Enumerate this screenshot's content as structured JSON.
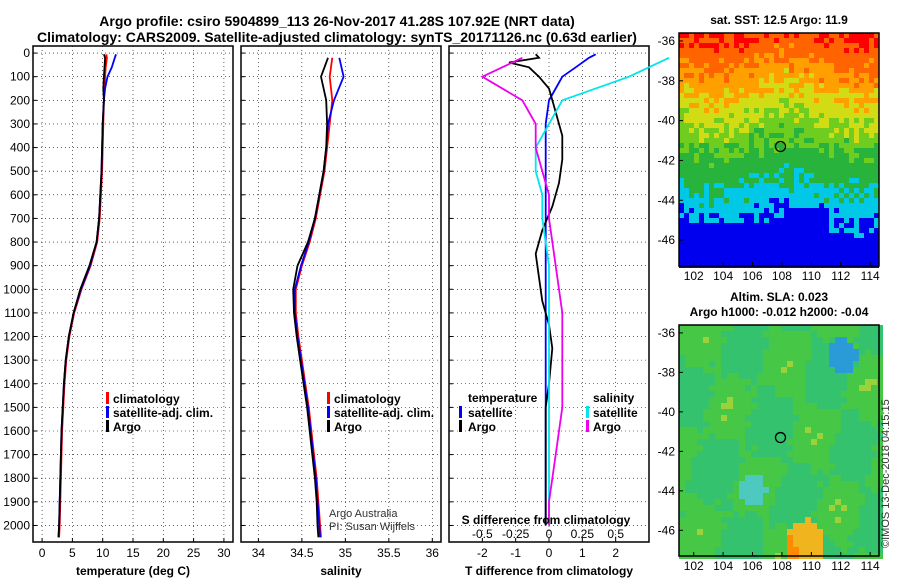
{
  "title": {
    "line1": "Argo profile: csiro 5904899_113 26-Nov-2017 41.28S 107.92E (NRT data)",
    "line2": "Climatology: CARS2009. Satellite-adjusted climatology: synTS_20171126.nc (0.63d earlier)"
  },
  "colors": {
    "climatology": "#ff0000",
    "satellite": "#0000ff",
    "argo": "#000000",
    "cyan": "#00e5ee",
    "magenta": "#ee00ee"
  },
  "chart_data": [
    {
      "type": "line",
      "name": "temperature",
      "xlabel": "temperature (deg C)",
      "xlim": [
        -1.5,
        31.5
      ],
      "xticks": [
        "0",
        "5",
        "10",
        "15",
        "20",
        "25",
        "30"
      ],
      "ylim": [
        2070,
        -30
      ],
      "yticks": [
        "0",
        "100",
        "200",
        "300",
        "400",
        "500",
        "600",
        "700",
        "800",
        "900",
        "1000",
        "1100",
        "1200",
        "1300",
        "1400",
        "1500",
        "1600",
        "1700",
        "1800",
        "1900",
        "2000"
      ],
      "legend": {
        "climatology": "climatology",
        "satellite": "satellite-adj. clim.",
        "argo": "Argo"
      },
      "series": [
        {
          "name": "climatology",
          "color": "#ff0000",
          "points": [
            [
              10.6,
              5
            ],
            [
              10.7,
              20
            ],
            [
              10.5,
              60
            ],
            [
              10.4,
              100
            ],
            [
              10.3,
              150
            ],
            [
              10.2,
              200
            ],
            [
              10.1,
              300
            ],
            [
              10.0,
              400
            ],
            [
              9.9,
              500
            ],
            [
              9.7,
              600
            ],
            [
              9.5,
              700
            ],
            [
              9.1,
              800
            ],
            [
              8.0,
              900
            ],
            [
              6.5,
              1000
            ],
            [
              5.3,
              1100
            ],
            [
              4.5,
              1200
            ],
            [
              4.0,
              1300
            ],
            [
              3.7,
              1400
            ],
            [
              3.5,
              1500
            ],
            [
              3.3,
              1600
            ],
            [
              3.2,
              1700
            ],
            [
              3.1,
              1800
            ],
            [
              3.0,
              1900
            ],
            [
              2.9,
              2000
            ],
            [
              2.8,
              2050
            ]
          ]
        },
        {
          "name": "satellite",
          "color": "#0000ff",
          "points": [
            [
              12.2,
              5
            ],
            [
              12.0,
              20
            ],
            [
              11.5,
              60
            ],
            [
              10.8,
              100
            ],
            [
              10.4,
              150
            ],
            [
              10.2,
              200
            ],
            [
              10.0,
              300
            ],
            [
              9.9,
              400
            ],
            [
              9.8,
              500
            ],
            [
              9.6,
              600
            ],
            [
              9.4,
              700
            ],
            [
              9.0,
              800
            ],
            [
              7.9,
              900
            ],
            [
              6.4,
              1000
            ],
            [
              5.2,
              1100
            ],
            [
              4.4,
              1200
            ],
            [
              3.9,
              1300
            ],
            [
              3.6,
              1400
            ],
            [
              3.4,
              1500
            ],
            [
              3.2,
              1600
            ],
            [
              3.1,
              1700
            ],
            [
              3.0,
              1800
            ],
            [
              2.9,
              1900
            ],
            [
              2.8,
              2000
            ],
            [
              2.7,
              2050
            ]
          ]
        },
        {
          "name": "argo",
          "color": "#000000",
          "points": [
            [
              10.2,
              5
            ],
            [
              10.4,
              20
            ],
            [
              10.3,
              60
            ],
            [
              10.2,
              100
            ],
            [
              10.1,
              150
            ],
            [
              10.2,
              200
            ],
            [
              10.0,
              300
            ],
            [
              9.9,
              400
            ],
            [
              9.8,
              500
            ],
            [
              9.6,
              600
            ],
            [
              9.4,
              700
            ],
            [
              9.0,
              800
            ],
            [
              7.8,
              900
            ],
            [
              6.3,
              1000
            ],
            [
              5.2,
              1100
            ],
            [
              4.4,
              1200
            ],
            [
              3.9,
              1300
            ],
            [
              3.6,
              1400
            ],
            [
              3.4,
              1500
            ],
            [
              3.2,
              1600
            ],
            [
              3.1,
              1700
            ],
            [
              3.0,
              1800
            ],
            [
              2.9,
              1900
            ],
            [
              2.8,
              2000
            ],
            [
              2.7,
              2050
            ]
          ]
        }
      ]
    },
    {
      "type": "line",
      "name": "salinity",
      "xlabel": "salinity",
      "xlim": [
        33.8,
        36.1
      ],
      "xticks": [
        "34",
        "34.5",
        "35",
        "35.5",
        "36"
      ],
      "ylim": [
        2070,
        -30
      ],
      "legend": {
        "climatology": "climatology",
        "satellite": "satellite-adj. clim.",
        "argo": "Argo"
      },
      "series": [
        {
          "name": "climatology",
          "color": "#ff0000",
          "points": [
            [
              34.85,
              20
            ],
            [
              34.82,
              100
            ],
            [
              34.85,
              200
            ],
            [
              34.82,
              300
            ],
            [
              34.79,
              400
            ],
            [
              34.76,
              500
            ],
            [
              34.71,
              600
            ],
            [
              34.66,
              700
            ],
            [
              34.59,
              800
            ],
            [
              34.5,
              900
            ],
            [
              34.43,
              1000
            ],
            [
              34.43,
              1100
            ],
            [
              34.46,
              1200
            ],
            [
              34.5,
              1300
            ],
            [
              34.54,
              1400
            ],
            [
              34.58,
              1500
            ],
            [
              34.61,
              1600
            ],
            [
              34.64,
              1700
            ],
            [
              34.67,
              1800
            ],
            [
              34.69,
              1900
            ],
            [
              34.71,
              2000
            ],
            [
              34.72,
              2050
            ]
          ]
        },
        {
          "name": "satellite",
          "color": "#0000ff",
          "points": [
            [
              34.93,
              20
            ],
            [
              34.98,
              100
            ],
            [
              34.87,
              200
            ],
            [
              34.8,
              300
            ],
            [
              34.78,
              400
            ],
            [
              34.75,
              500
            ],
            [
              34.7,
              600
            ],
            [
              34.65,
              700
            ],
            [
              34.58,
              800
            ],
            [
              34.49,
              900
            ],
            [
              34.42,
              1000
            ],
            [
              34.42,
              1100
            ],
            [
              34.45,
              1200
            ],
            [
              34.49,
              1300
            ],
            [
              34.53,
              1400
            ],
            [
              34.57,
              1500
            ],
            [
              34.6,
              1600
            ],
            [
              34.63,
              1700
            ],
            [
              34.66,
              1800
            ],
            [
              34.68,
              1900
            ],
            [
              34.7,
              2000
            ],
            [
              34.71,
              2050
            ]
          ]
        },
        {
          "name": "argo",
          "color": "#000000",
          "points": [
            [
              34.8,
              20
            ],
            [
              34.72,
              100
            ],
            [
              34.78,
              200
            ],
            [
              34.79,
              300
            ],
            [
              34.78,
              400
            ],
            [
              34.75,
              500
            ],
            [
              34.7,
              600
            ],
            [
              34.65,
              700
            ],
            [
              34.57,
              800
            ],
            [
              34.45,
              900
            ],
            [
              34.4,
              1000
            ],
            [
              34.41,
              1100
            ],
            [
              34.44,
              1200
            ],
            [
              34.48,
              1300
            ],
            [
              34.52,
              1400
            ],
            [
              34.56,
              1500
            ],
            [
              34.59,
              1600
            ],
            [
              34.62,
              1700
            ],
            [
              34.65,
              1800
            ],
            [
              34.67,
              1900
            ],
            [
              34.68,
              2000
            ],
            [
              34.69,
              2050
            ]
          ]
        }
      ],
      "credit": [
        "Argo Australia",
        "PI: Susan Wijffels"
      ]
    },
    {
      "type": "line",
      "name": "difference",
      "xlabel": "T difference from climatology",
      "xlabel_top": "S difference from climatology",
      "xlim": [
        -3,
        3
      ],
      "xticks": [
        "-2",
        "-1",
        "0",
        "1",
        "2"
      ],
      "xticks_s": [
        "-0.5",
        "-0.25",
        "0",
        "0.25",
        "0.5"
      ],
      "ylim": [
        2070,
        -30
      ],
      "legend": {
        "temperature": "temperature",
        "salinity": "salinity",
        "satellite": "satellite",
        "argo": "Argo"
      },
      "series": [
        {
          "name": "T satellite",
          "color": "#0000ff",
          "points": [
            [
              1.4,
              5
            ],
            [
              1.2,
              20
            ],
            [
              0.8,
              60
            ],
            [
              0.4,
              100
            ],
            [
              0.2,
              150
            ],
            [
              0.0,
              200
            ],
            [
              -0.1,
              300
            ],
            [
              -0.1,
              400
            ],
            [
              -0.1,
              500
            ],
            [
              -0.1,
              600
            ],
            [
              -0.1,
              700
            ],
            [
              -0.1,
              800
            ],
            [
              -0.1,
              900
            ],
            [
              -0.1,
              1000
            ],
            [
              -0.1,
              1100
            ],
            [
              -0.1,
              1200
            ],
            [
              -0.1,
              1300
            ],
            [
              -0.1,
              1400
            ],
            [
              -0.1,
              1500
            ],
            [
              -0.1,
              1600
            ],
            [
              -0.1,
              1700
            ],
            [
              -0.1,
              1800
            ],
            [
              -0.1,
              1900
            ],
            [
              -0.1,
              2000
            ]
          ]
        },
        {
          "name": "T argo",
          "color": "#000000",
          "points": [
            [
              -0.4,
              5
            ],
            [
              -0.3,
              20
            ],
            [
              -1.2,
              40
            ],
            [
              -0.6,
              60
            ],
            [
              -0.3,
              100
            ],
            [
              0.0,
              150
            ],
            [
              0.2,
              250
            ],
            [
              0.4,
              350
            ],
            [
              0.4,
              450
            ],
            [
              0.3,
              550
            ],
            [
              0.1,
              650
            ],
            [
              -0.2,
              750
            ],
            [
              -0.4,
              850
            ],
            [
              -0.3,
              950
            ],
            [
              -0.2,
              1050
            ],
            [
              0.0,
              1150
            ],
            [
              0.1,
              1250
            ],
            [
              0.0,
              1400
            ],
            [
              -0.1,
              1500
            ],
            [
              -0.1,
              1600
            ],
            [
              -0.1,
              1700
            ],
            [
              -0.1,
              1800
            ],
            [
              -0.1,
              1900
            ],
            [
              -0.1,
              2000
            ]
          ]
        },
        {
          "name": "S satellite",
          "color": "#00e5ee",
          "points": [
            [
              0.9,
              20
            ],
            [
              0.6,
              100
            ],
            [
              0.1,
              200
            ],
            [
              0.0,
              300
            ],
            [
              -0.1,
              400
            ],
            [
              -0.1,
              500
            ],
            [
              -0.05,
              600
            ],
            [
              -0.05,
              700
            ],
            [
              0.0,
              900
            ],
            [
              0.0,
              1100
            ],
            [
              0.0,
              1300
            ],
            [
              0.0,
              1500
            ],
            [
              0.0,
              1700
            ],
            [
              0.0,
              1900
            ],
            [
              0.0,
              2000
            ]
          ]
        },
        {
          "name": "S argo",
          "color": "#ee00ee",
          "points": [
            [
              -0.2,
              20
            ],
            [
              -0.5,
              100
            ],
            [
              -0.2,
              200
            ],
            [
              -0.1,
              300
            ],
            [
              -0.1,
              400
            ],
            [
              -0.05,
              500
            ],
            [
              0.0,
              600
            ],
            [
              0.0,
              700
            ],
            [
              0.05,
              900
            ],
            [
              0.1,
              1100
            ],
            [
              0.1,
              1300
            ],
            [
              0.1,
              1500
            ],
            [
              0.05,
              1700
            ],
            [
              0.0,
              1900
            ],
            [
              0.0,
              2000
            ]
          ]
        }
      ]
    },
    {
      "type": "heatmap",
      "name": "sst-map",
      "title": "sat. SST: 12.5 Argo: 11.9",
      "xticks": [
        "102",
        "104",
        "106",
        "108",
        "110",
        "112",
        "114"
      ],
      "yticks": [
        "-36",
        "-38",
        "-40",
        "-42",
        "-44",
        "-46"
      ],
      "xlim": [
        101,
        114.6
      ],
      "ylim": [
        -47.3,
        -35.6
      ],
      "marker": [
        107.9,
        -41.3
      ]
    },
    {
      "type": "heatmap",
      "name": "sla-map",
      "title": "Altim. SLA: 0.023",
      "subtitle": "Argo h1000: -0.012 h2000: -0.04",
      "xticks": [
        "102",
        "104",
        "106",
        "108",
        "110",
        "112",
        "114"
      ],
      "yticks": [
        "-36",
        "-38",
        "-40",
        "-42",
        "-44",
        "-46"
      ],
      "xlim": [
        101,
        114.6
      ],
      "ylim": [
        -47.3,
        -35.6
      ],
      "marker": [
        107.9,
        -41.3
      ]
    }
  ],
  "footer": "©IMOS 13-Dec-2018 04:15:15"
}
